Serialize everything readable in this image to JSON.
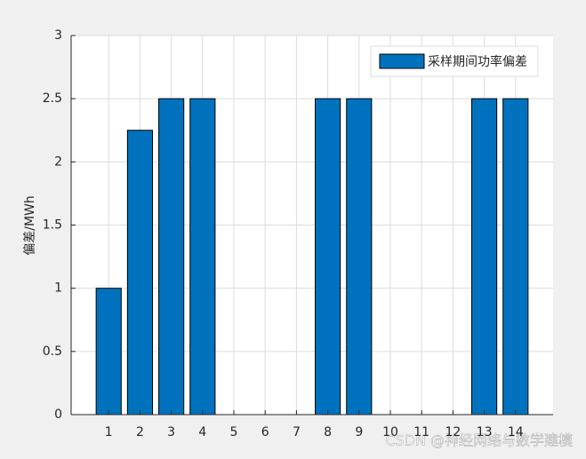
{
  "chart_data": {
    "type": "bar",
    "x": [
      1,
      2,
      3,
      4,
      5,
      6,
      7,
      8,
      9,
      10,
      11,
      12,
      13,
      14
    ],
    "series": [
      {
        "name": "采样期间功率偏差",
        "color": "#0072bd",
        "values": [
          1,
          2.25,
          2.5,
          2.5,
          0,
          0,
          0,
          2.5,
          2.5,
          0,
          0,
          0,
          2.5,
          2.5
        ]
      }
    ],
    "xlim": [
      -0.2,
      15.2
    ],
    "xticks": [
      1,
      2,
      3,
      4,
      5,
      6,
      7,
      8,
      9,
      10,
      11,
      12,
      13,
      14
    ],
    "ylim": [
      0,
      3
    ],
    "yticks": [
      0,
      0.5,
      1,
      1.5,
      2,
      2.5,
      3
    ],
    "ylabel": "偏差/MWh",
    "grid": true,
    "legend": "top-right",
    "watermark": "CSDN @神经网络与数学建模"
  }
}
